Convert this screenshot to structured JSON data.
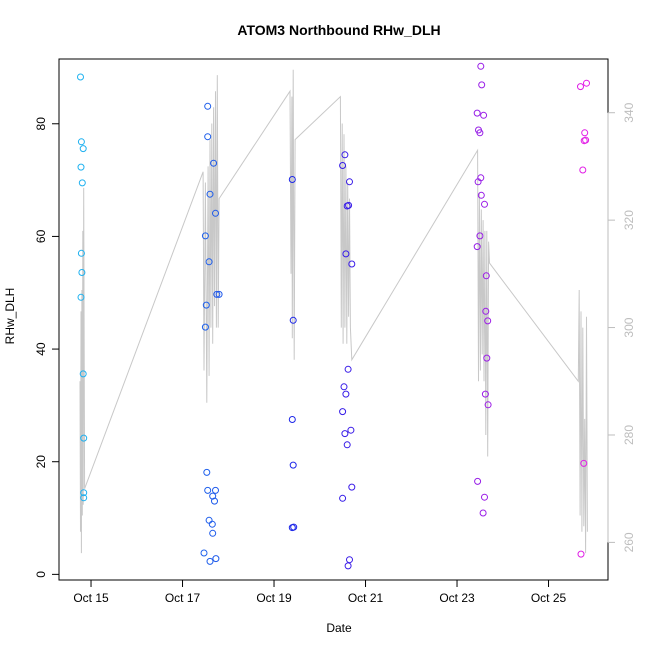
{
  "chart_data": {
    "type": "scatter",
    "title": "ATOM3 Northbound RHw_DLH",
    "xlabel": "Date",
    "ylabel": "RHw_DLH",
    "xlim": [
      14.3,
      26.3
    ],
    "ylim": [
      -1,
      91.5
    ],
    "y2lim": [
      253,
      350
    ],
    "x_ticks": [
      {
        "value": 15,
        "label": "Oct 15"
      },
      {
        "value": 17,
        "label": "Oct 17"
      },
      {
        "value": 19,
        "label": "Oct 19"
      },
      {
        "value": 21,
        "label": "Oct 21"
      },
      {
        "value": 23,
        "label": "Oct 23"
      },
      {
        "value": 25,
        "label": "Oct 25"
      }
    ],
    "y_ticks": [
      0,
      20,
      40,
      60,
      80
    ],
    "y2_ticks": [
      260,
      280,
      300,
      320,
      340
    ],
    "colors": {
      "points_start": "#1eb4f0",
      "points_mid": "#1c1ce8",
      "points_end": "#e61ee6",
      "line": "#c8c8c8",
      "right_axis": "#bdbdbd",
      "axis": "#000000"
    },
    "points": [
      {
        "x": 14.77,
        "y": 88.3
      },
      {
        "x": 14.79,
        "y": 76.8
      },
      {
        "x": 14.78,
        "y": 72.3
      },
      {
        "x": 14.81,
        "y": 69.5
      },
      {
        "x": 14.83,
        "y": 75.6
      },
      {
        "x": 14.79,
        "y": 57.0
      },
      {
        "x": 14.8,
        "y": 53.6
      },
      {
        "x": 14.78,
        "y": 49.2
      },
      {
        "x": 14.83,
        "y": 35.6
      },
      {
        "x": 14.84,
        "y": 24.2
      },
      {
        "x": 14.84,
        "y": 14.5
      },
      {
        "x": 14.84,
        "y": 13.6
      },
      {
        "x": 17.55,
        "y": 83.1
      },
      {
        "x": 17.55,
        "y": 77.7
      },
      {
        "x": 17.68,
        "y": 73.0
      },
      {
        "x": 17.6,
        "y": 67.5
      },
      {
        "x": 17.72,
        "y": 64.1
      },
      {
        "x": 17.5,
        "y": 60.1
      },
      {
        "x": 17.58,
        "y": 55.5
      },
      {
        "x": 17.75,
        "y": 49.7
      },
      {
        "x": 17.8,
        "y": 49.7
      },
      {
        "x": 17.52,
        "y": 47.8
      },
      {
        "x": 17.5,
        "y": 43.9
      },
      {
        "x": 17.53,
        "y": 18.1
      },
      {
        "x": 17.55,
        "y": 14.9
      },
      {
        "x": 17.72,
        "y": 14.9
      },
      {
        "x": 17.66,
        "y": 13.9
      },
      {
        "x": 17.7,
        "y": 13.0
      },
      {
        "x": 17.58,
        "y": 9.6
      },
      {
        "x": 17.65,
        "y": 8.9
      },
      {
        "x": 17.66,
        "y": 7.3
      },
      {
        "x": 17.47,
        "y": 3.8
      },
      {
        "x": 17.6,
        "y": 2.3
      },
      {
        "x": 17.73,
        "y": 2.8
      },
      {
        "x": 19.4,
        "y": 70.1
      },
      {
        "x": 19.42,
        "y": 45.1
      },
      {
        "x": 19.4,
        "y": 27.5
      },
      {
        "x": 19.42,
        "y": 19.4
      },
      {
        "x": 19.4,
        "y": 8.3
      },
      {
        "x": 19.43,
        "y": 8.4
      },
      {
        "x": 20.55,
        "y": 74.5
      },
      {
        "x": 20.5,
        "y": 72.6
      },
      {
        "x": 20.65,
        "y": 69.7
      },
      {
        "x": 20.6,
        "y": 65.4
      },
      {
        "x": 20.63,
        "y": 65.5
      },
      {
        "x": 20.57,
        "y": 56.9
      },
      {
        "x": 20.7,
        "y": 55.1
      },
      {
        "x": 20.62,
        "y": 36.4
      },
      {
        "x": 20.53,
        "y": 33.3
      },
      {
        "x": 20.57,
        "y": 32.0
      },
      {
        "x": 20.5,
        "y": 28.9
      },
      {
        "x": 20.55,
        "y": 25.0
      },
      {
        "x": 20.68,
        "y": 25.6
      },
      {
        "x": 20.6,
        "y": 23.0
      },
      {
        "x": 20.7,
        "y": 15.5
      },
      {
        "x": 20.5,
        "y": 13.5
      },
      {
        "x": 20.65,
        "y": 2.6
      },
      {
        "x": 20.62,
        "y": 1.5
      },
      {
        "x": 23.52,
        "y": 90.2
      },
      {
        "x": 23.54,
        "y": 86.9
      },
      {
        "x": 23.44,
        "y": 81.9
      },
      {
        "x": 23.58,
        "y": 81.5
      },
      {
        "x": 23.5,
        "y": 78.4
      },
      {
        "x": 23.47,
        "y": 78.9
      },
      {
        "x": 23.52,
        "y": 70.4
      },
      {
        "x": 23.46,
        "y": 69.7
      },
      {
        "x": 23.53,
        "y": 67.3
      },
      {
        "x": 23.6,
        "y": 65.7
      },
      {
        "x": 23.5,
        "y": 60.1
      },
      {
        "x": 23.44,
        "y": 58.2
      },
      {
        "x": 23.64,
        "y": 53.0
      },
      {
        "x": 23.63,
        "y": 46.7
      },
      {
        "x": 23.67,
        "y": 45.0
      },
      {
        "x": 23.65,
        "y": 38.4
      },
      {
        "x": 23.62,
        "y": 32.0
      },
      {
        "x": 23.68,
        "y": 30.1
      },
      {
        "x": 23.45,
        "y": 16.5
      },
      {
        "x": 23.6,
        "y": 13.7
      },
      {
        "x": 23.57,
        "y": 10.9
      },
      {
        "x": 25.7,
        "y": 86.6
      },
      {
        "x": 25.83,
        "y": 87.2
      },
      {
        "x": 25.79,
        "y": 78.4
      },
      {
        "x": 25.78,
        "y": 77.0
      },
      {
        "x": 25.81,
        "y": 77.1
      },
      {
        "x": 25.75,
        "y": 71.8
      },
      {
        "x": 25.77,
        "y": 19.7
      },
      {
        "x": 25.71,
        "y": 3.6
      }
    ],
    "line_series": [
      {
        "x": 14.76,
        "y2": 290
      },
      {
        "x": 14.77,
        "y2": 262
      },
      {
        "x": 14.78,
        "y2": 303
      },
      {
        "x": 14.79,
        "y2": 258
      },
      {
        "x": 14.8,
        "y2": 307
      },
      {
        "x": 14.81,
        "y2": 265
      },
      {
        "x": 14.82,
        "y2": 318
      },
      {
        "x": 14.83,
        "y2": 267
      },
      {
        "x": 14.84,
        "y2": 326
      },
      {
        "x": 14.86,
        "y2": 270
      },
      {
        "x": 17.45,
        "y2": 329
      },
      {
        "x": 17.47,
        "y2": 292
      },
      {
        "x": 17.5,
        "y2": 327
      },
      {
        "x": 17.53,
        "y2": 286
      },
      {
        "x": 17.56,
        "y2": 330
      },
      {
        "x": 17.58,
        "y2": 291
      },
      {
        "x": 17.6,
        "y2": 335
      },
      {
        "x": 17.62,
        "y2": 300
      },
      {
        "x": 17.64,
        "y2": 338
      },
      {
        "x": 17.66,
        "y2": 297
      },
      {
        "x": 17.68,
        "y2": 341
      },
      {
        "x": 17.7,
        "y2": 304
      },
      {
        "x": 17.72,
        "y2": 344
      },
      {
        "x": 17.74,
        "y2": 300
      },
      {
        "x": 17.76,
        "y2": 347
      },
      {
        "x": 17.78,
        "y2": 300
      },
      {
        "x": 17.8,
        "y2": 324
      },
      {
        "x": 19.35,
        "y2": 344
      },
      {
        "x": 19.37,
        "y2": 310
      },
      {
        "x": 19.39,
        "y2": 343
      },
      {
        "x": 19.4,
        "y2": 298
      },
      {
        "x": 19.42,
        "y2": 348
      },
      {
        "x": 19.44,
        "y2": 294
      },
      {
        "x": 19.46,
        "y2": 335
      },
      {
        "x": 20.45,
        "y2": 343
      },
      {
        "x": 20.47,
        "y2": 300
      },
      {
        "x": 20.49,
        "y2": 338
      },
      {
        "x": 20.51,
        "y2": 297
      },
      {
        "x": 20.53,
        "y2": 336
      },
      {
        "x": 20.55,
        "y2": 300
      },
      {
        "x": 20.57,
        "y2": 330
      },
      {
        "x": 20.59,
        "y2": 297
      },
      {
        "x": 20.61,
        "y2": 327
      },
      {
        "x": 20.63,
        "y2": 302
      },
      {
        "x": 20.65,
        "y2": 324
      },
      {
        "x": 20.67,
        "y2": 300
      },
      {
        "x": 20.7,
        "y2": 294
      },
      {
        "x": 23.45,
        "y2": 333
      },
      {
        "x": 23.47,
        "y2": 290
      },
      {
        "x": 23.49,
        "y2": 325
      },
      {
        "x": 23.51,
        "y2": 292
      },
      {
        "x": 23.53,
        "y2": 322
      },
      {
        "x": 23.55,
        "y2": 295
      },
      {
        "x": 23.57,
        "y2": 320
      },
      {
        "x": 23.59,
        "y2": 290
      },
      {
        "x": 23.61,
        "y2": 318
      },
      {
        "x": 23.63,
        "y2": 280
      },
      {
        "x": 23.65,
        "y2": 318
      },
      {
        "x": 23.67,
        "y2": 276
      },
      {
        "x": 23.69,
        "y2": 316
      },
      {
        "x": 23.71,
        "y2": 312
      },
      {
        "x": 25.65,
        "y2": 290
      },
      {
        "x": 25.67,
        "y2": 307
      },
      {
        "x": 25.69,
        "y2": 265
      },
      {
        "x": 25.71,
        "y2": 303
      },
      {
        "x": 25.73,
        "y2": 262
      },
      {
        "x": 25.75,
        "y2": 300
      },
      {
        "x": 25.77,
        "y2": 263
      },
      {
        "x": 25.79,
        "y2": 283
      },
      {
        "x": 25.81,
        "y2": 258
      },
      {
        "x": 25.83,
        "y2": 302
      },
      {
        "x": 25.85,
        "y2": 262
      }
    ]
  }
}
